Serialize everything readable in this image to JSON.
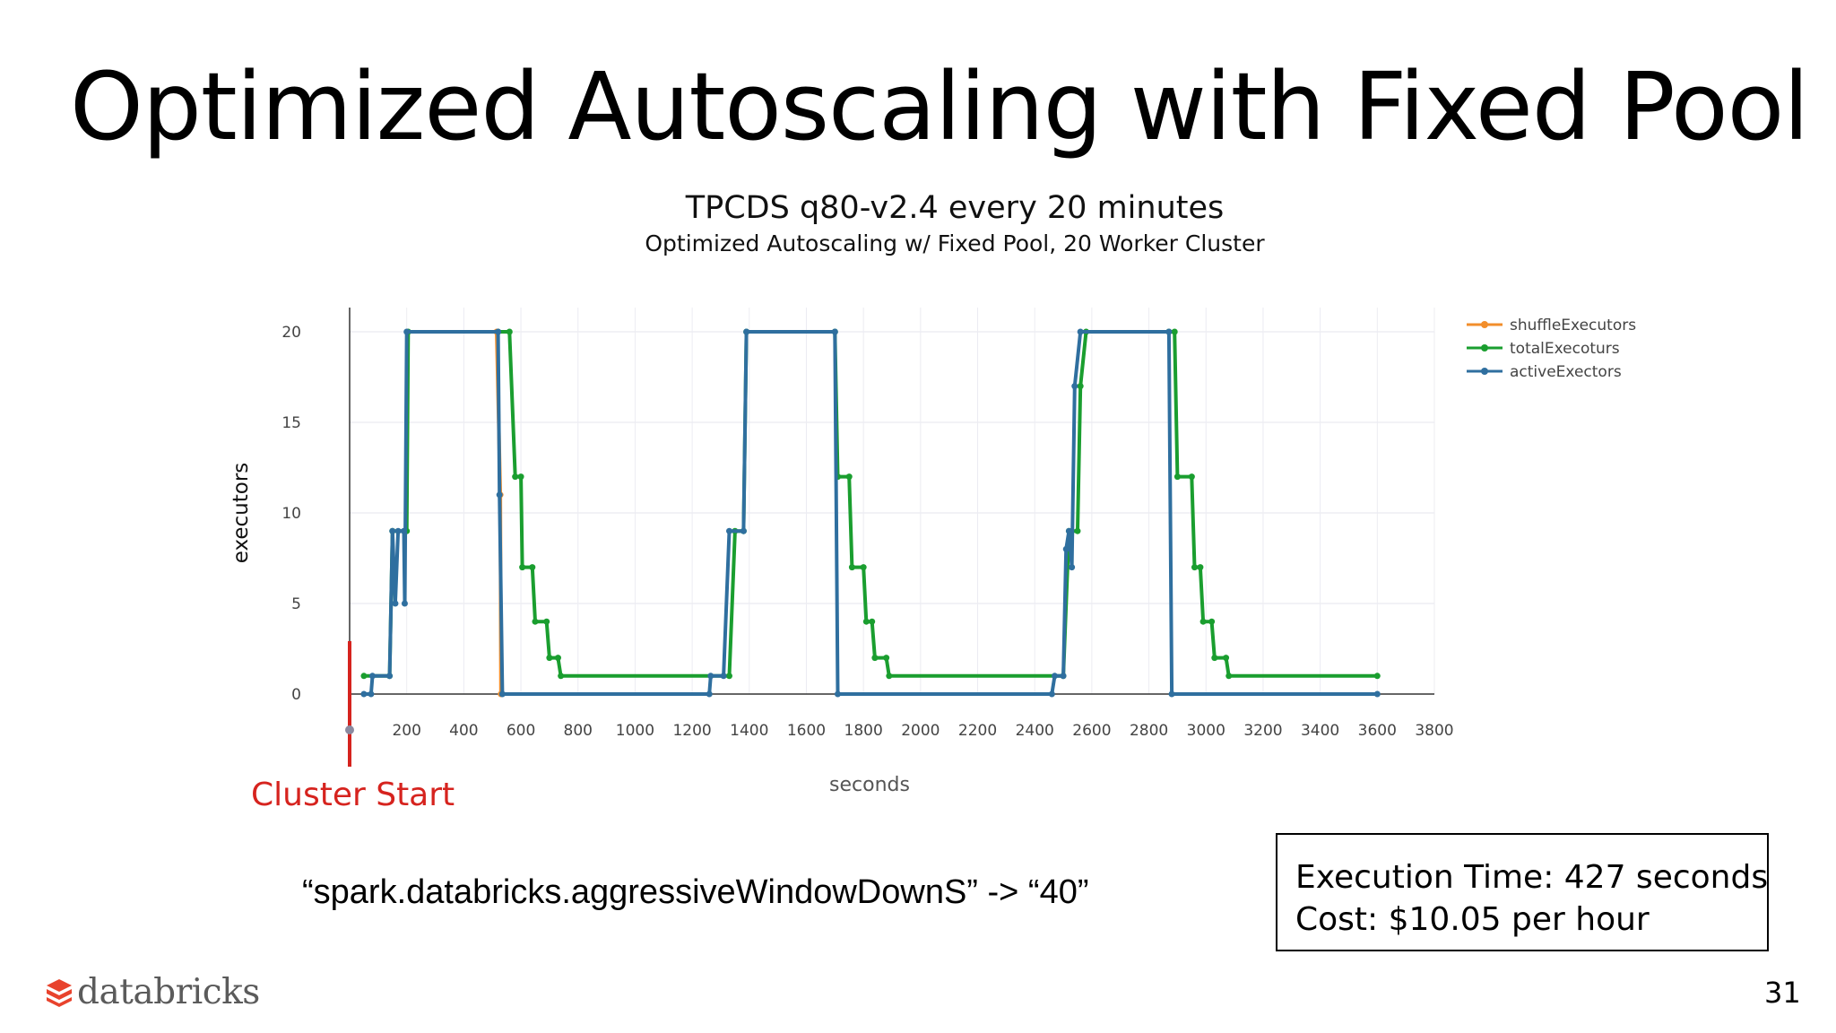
{
  "slide": {
    "title": "Optimized Autoscaling with Fixed Pool",
    "page_number": "31",
    "config_text": "“spark.databricks.aggressiveWindowDownS” -> “40”",
    "result_box": {
      "execution_time": "Execution Time: 427 seconds",
      "cost": "Cost: $10.05 per hour"
    },
    "logo_text": "databricks",
    "logo_icon": "databricks-logo-icon"
  },
  "chart_data": {
    "type": "line",
    "title": "TPCDS q80-v2.4 every 20 minutes",
    "subtitle": "Optimized Autoscaling w/ Fixed Pool, 20 Worker Cluster",
    "xlabel": "seconds",
    "ylabel": "executors",
    "xlim": [
      0,
      3800
    ],
    "ylim": [
      0,
      20
    ],
    "x_ticks": [
      200,
      400,
      600,
      800,
      1000,
      1200,
      1400,
      1600,
      1800,
      2000,
      2200,
      2400,
      2600,
      2800,
      3000,
      3200,
      3400,
      3600,
      3800
    ],
    "y_ticks": [
      0,
      5,
      10,
      15,
      20
    ],
    "grid": true,
    "legend_position": "top-right",
    "annotation": {
      "label": "Cluster Start",
      "x": 0,
      "color": "#d6231e"
    },
    "series": [
      {
        "name": "shuffleExecutors",
        "color": "#f28e2b",
        "points": [
          [
            515,
            20
          ],
          [
            528,
            11
          ],
          [
            530,
            0
          ]
        ]
      },
      {
        "name": "totalExecoturs",
        "color": "#1a9e2f",
        "points": [
          [
            50,
            1
          ],
          [
            140,
            1
          ],
          [
            150,
            9
          ],
          [
            200,
            9
          ],
          [
            205,
            20
          ],
          [
            520,
            20
          ],
          [
            560,
            20
          ],
          [
            580,
            12
          ],
          [
            600,
            12
          ],
          [
            605,
            7
          ],
          [
            640,
            7
          ],
          [
            650,
            4
          ],
          [
            690,
            4
          ],
          [
            700,
            2
          ],
          [
            730,
            2
          ],
          [
            740,
            1
          ],
          [
            1330,
            1
          ],
          [
            1350,
            9
          ],
          [
            1380,
            9
          ],
          [
            1390,
            20
          ],
          [
            1700,
            20
          ],
          [
            1710,
            12
          ],
          [
            1750,
            12
          ],
          [
            1760,
            7
          ],
          [
            1800,
            7
          ],
          [
            1810,
            4
          ],
          [
            1830,
            4
          ],
          [
            1840,
            2
          ],
          [
            1880,
            2
          ],
          [
            1890,
            1
          ],
          [
            2500,
            1
          ],
          [
            2520,
            9
          ],
          [
            2550,
            9
          ],
          [
            2560,
            17
          ],
          [
            2580,
            20
          ],
          [
            2870,
            20
          ],
          [
            2890,
            20
          ],
          [
            2900,
            12
          ],
          [
            2950,
            12
          ],
          [
            2960,
            7
          ],
          [
            2980,
            7
          ],
          [
            2990,
            4
          ],
          [
            3020,
            4
          ],
          [
            3030,
            2
          ],
          [
            3070,
            2
          ],
          [
            3080,
            1
          ],
          [
            3600,
            1
          ]
        ]
      },
      {
        "name": "activeExectors",
        "color": "#2f6f9f",
        "points": [
          [
            50,
            0
          ],
          [
            75,
            0
          ],
          [
            80,
            1
          ],
          [
            140,
            1
          ],
          [
            150,
            9
          ],
          [
            160,
            5
          ],
          [
            170,
            9
          ],
          [
            190,
            9
          ],
          [
            193,
            5
          ],
          [
            200,
            20
          ],
          [
            520,
            20
          ],
          [
            525,
            11
          ],
          [
            535,
            0
          ],
          [
            1260,
            0
          ],
          [
            1265,
            1
          ],
          [
            1310,
            1
          ],
          [
            1330,
            9
          ],
          [
            1380,
            9
          ],
          [
            1390,
            20
          ],
          [
            1700,
            20
          ],
          [
            1710,
            0
          ],
          [
            2460,
            0
          ],
          [
            2470,
            1
          ],
          [
            2500,
            1
          ],
          [
            2510,
            8
          ],
          [
            2520,
            9
          ],
          [
            2530,
            7
          ],
          [
            2540,
            17
          ],
          [
            2560,
            20
          ],
          [
            2870,
            20
          ],
          [
            2880,
            0
          ],
          [
            3600,
            0
          ]
        ]
      }
    ]
  }
}
